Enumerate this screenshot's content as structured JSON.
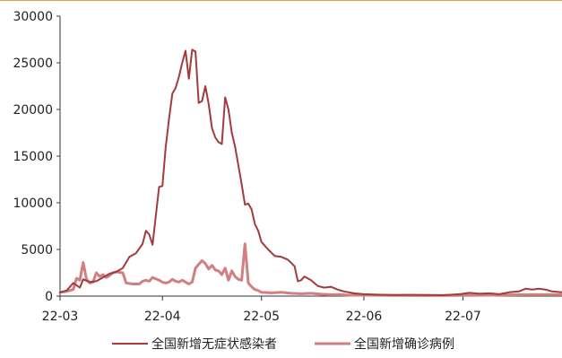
{
  "chart_data": {
    "type": "line",
    "title": "",
    "xlabel": "",
    "ylabel": "",
    "ylim": [
      0,
      30000
    ],
    "yticks": [
      0,
      5000,
      10000,
      15000,
      20000,
      25000,
      30000
    ],
    "xlim": [
      "2022-03-01",
      "2022-07-31"
    ],
    "xticks": [
      {
        "date": "2022-03-01",
        "label": "22-03"
      },
      {
        "date": "2022-04-01",
        "label": "22-04"
      },
      {
        "date": "2022-05-01",
        "label": "22-05"
      },
      {
        "date": "2022-06-01",
        "label": "22-06"
      },
      {
        "date": "2022-07-01",
        "label": "22-07"
      }
    ],
    "grid": false,
    "legend_position": "bottom",
    "series": [
      {
        "name": "全国新增无症状感染者",
        "color": "#a23b3b",
        "points": [
          [
            "2022-03-01",
            400
          ],
          [
            "2022-03-03",
            600
          ],
          [
            "2022-03-05",
            1400
          ],
          [
            "2022-03-07",
            900
          ],
          [
            "2022-03-08",
            1800
          ],
          [
            "2022-03-10",
            1500
          ],
          [
            "2022-03-12",
            1600
          ],
          [
            "2022-03-14",
            2000
          ],
          [
            "2022-03-16",
            2400
          ],
          [
            "2022-03-18",
            2600
          ],
          [
            "2022-03-20",
            3000
          ],
          [
            "2022-03-22",
            4200
          ],
          [
            "2022-03-24",
            4600
          ],
          [
            "2022-03-26",
            5600
          ],
          [
            "2022-03-27",
            7000
          ],
          [
            "2022-03-28",
            6600
          ],
          [
            "2022-03-29",
            5500
          ],
          [
            "2022-03-31",
            11700
          ],
          [
            "2022-04-01",
            11800
          ],
          [
            "2022-04-02",
            16000
          ],
          [
            "2022-04-03",
            19000
          ],
          [
            "2022-04-04",
            21700
          ],
          [
            "2022-04-05",
            22300
          ],
          [
            "2022-04-06",
            23500
          ],
          [
            "2022-04-07",
            25000
          ],
          [
            "2022-04-08",
            26300
          ],
          [
            "2022-04-09",
            23300
          ],
          [
            "2022-04-10",
            26400
          ],
          [
            "2022-04-11",
            26200
          ],
          [
            "2022-04-12",
            20700
          ],
          [
            "2022-04-13",
            20900
          ],
          [
            "2022-04-14",
            22500
          ],
          [
            "2022-04-15",
            20600
          ],
          [
            "2022-04-16",
            18000
          ],
          [
            "2022-04-17",
            17000
          ],
          [
            "2022-04-18",
            16500
          ],
          [
            "2022-04-19",
            16300
          ],
          [
            "2022-04-20",
            21300
          ],
          [
            "2022-04-21",
            20000
          ],
          [
            "2022-04-22",
            17500
          ],
          [
            "2022-04-23",
            16000
          ],
          [
            "2022-04-25",
            12000
          ],
          [
            "2022-04-26",
            9800
          ],
          [
            "2022-04-27",
            9900
          ],
          [
            "2022-04-28",
            9300
          ],
          [
            "2022-04-29",
            7700
          ],
          [
            "2022-04-30",
            7000
          ],
          [
            "2022-05-01",
            5800
          ],
          [
            "2022-05-03",
            5000
          ],
          [
            "2022-05-05",
            4300
          ],
          [
            "2022-05-07",
            4200
          ],
          [
            "2022-05-09",
            3900
          ],
          [
            "2022-05-11",
            3200
          ],
          [
            "2022-05-12",
            1600
          ],
          [
            "2022-05-13",
            1700
          ],
          [
            "2022-05-14",
            2100
          ],
          [
            "2022-05-16",
            1700
          ],
          [
            "2022-05-18",
            1100
          ],
          [
            "2022-05-20",
            900
          ],
          [
            "2022-05-22",
            1000
          ],
          [
            "2022-05-24",
            700
          ],
          [
            "2022-05-26",
            500
          ],
          [
            "2022-05-29",
            300
          ],
          [
            "2022-06-01",
            200
          ],
          [
            "2022-06-05",
            150
          ],
          [
            "2022-06-10",
            120
          ],
          [
            "2022-06-15",
            130
          ],
          [
            "2022-06-20",
            120
          ],
          [
            "2022-06-25",
            100
          ],
          [
            "2022-06-30",
            200
          ],
          [
            "2022-07-03",
            350
          ],
          [
            "2022-07-06",
            250
          ],
          [
            "2022-07-09",
            300
          ],
          [
            "2022-07-12",
            200
          ],
          [
            "2022-07-15",
            400
          ],
          [
            "2022-07-18",
            500
          ],
          [
            "2022-07-20",
            800
          ],
          [
            "2022-07-22",
            700
          ],
          [
            "2022-07-24",
            800
          ],
          [
            "2022-07-26",
            700
          ],
          [
            "2022-07-28",
            500
          ],
          [
            "2022-07-31",
            400
          ]
        ]
      },
      {
        "name": "全国新增确诊病例",
        "color": "#d17f80",
        "points": [
          [
            "2022-03-01",
            400
          ],
          [
            "2022-03-03",
            500
          ],
          [
            "2022-03-05",
            700
          ],
          [
            "2022-03-06",
            1900
          ],
          [
            "2022-03-07",
            1700
          ],
          [
            "2022-03-08",
            3600
          ],
          [
            "2022-03-09",
            1800
          ],
          [
            "2022-03-10",
            1400
          ],
          [
            "2022-03-11",
            1500
          ],
          [
            "2022-03-12",
            2500
          ],
          [
            "2022-03-13",
            2100
          ],
          [
            "2022-03-14",
            2300
          ],
          [
            "2022-03-15",
            2000
          ],
          [
            "2022-03-16",
            2200
          ],
          [
            "2022-03-17",
            2500
          ],
          [
            "2022-03-18",
            2600
          ],
          [
            "2022-03-20",
            2500
          ],
          [
            "2022-03-21",
            1400
          ],
          [
            "2022-03-23",
            1300
          ],
          [
            "2022-03-25",
            1300
          ],
          [
            "2022-03-26",
            1600
          ],
          [
            "2022-03-27",
            1700
          ],
          [
            "2022-03-28",
            1600
          ],
          [
            "2022-03-29",
            2000
          ],
          [
            "2022-03-31",
            1700
          ],
          [
            "2022-04-01",
            1500
          ],
          [
            "2022-04-02",
            1400
          ],
          [
            "2022-04-03",
            1500
          ],
          [
            "2022-04-04",
            1800
          ],
          [
            "2022-04-05",
            1600
          ],
          [
            "2022-04-06",
            1500
          ],
          [
            "2022-04-07",
            1700
          ],
          [
            "2022-04-08",
            1500
          ],
          [
            "2022-04-09",
            1300
          ],
          [
            "2022-04-10",
            1500
          ],
          [
            "2022-04-11",
            3000
          ],
          [
            "2022-04-12",
            3400
          ],
          [
            "2022-04-13",
            3800
          ],
          [
            "2022-04-14",
            3500
          ],
          [
            "2022-04-15",
            2900
          ],
          [
            "2022-04-16",
            3300
          ],
          [
            "2022-04-17",
            2800
          ],
          [
            "2022-04-18",
            2700
          ],
          [
            "2022-04-19",
            2300
          ],
          [
            "2022-04-20",
            3000
          ],
          [
            "2022-04-21",
            1700
          ],
          [
            "2022-04-22",
            2700
          ],
          [
            "2022-04-23",
            2100
          ],
          [
            "2022-04-24",
            1800
          ],
          [
            "2022-04-25",
            1700
          ],
          [
            "2022-04-26",
            5600
          ],
          [
            "2022-04-27",
            1400
          ],
          [
            "2022-04-28",
            1000
          ],
          [
            "2022-04-29",
            700
          ],
          [
            "2022-04-30",
            600
          ],
          [
            "2022-05-01",
            400
          ],
          [
            "2022-05-04",
            350
          ],
          [
            "2022-05-07",
            400
          ],
          [
            "2022-05-10",
            300
          ],
          [
            "2022-05-13",
            250
          ],
          [
            "2022-05-16",
            300
          ],
          [
            "2022-05-19",
            200
          ],
          [
            "2022-05-22",
            150
          ],
          [
            "2022-05-25",
            150
          ],
          [
            "2022-05-28",
            100
          ],
          [
            "2022-06-01",
            100
          ],
          [
            "2022-06-10",
            80
          ],
          [
            "2022-06-20",
            60
          ],
          [
            "2022-06-30",
            80
          ],
          [
            "2022-07-10",
            100
          ],
          [
            "2022-07-20",
            150
          ],
          [
            "2022-07-31",
            150
          ]
        ]
      }
    ]
  }
}
